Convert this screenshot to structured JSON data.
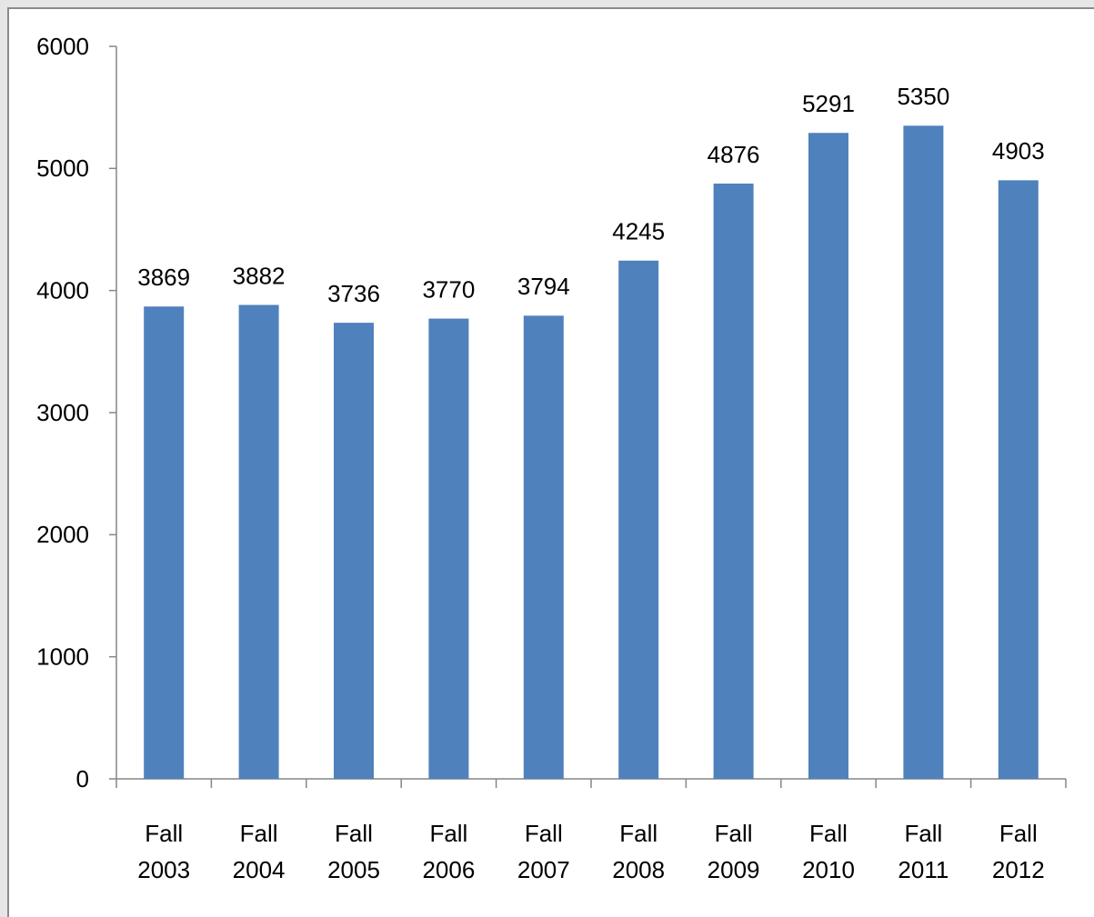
{
  "chart_data": {
    "type": "bar",
    "categories": [
      "Fall 2003",
      "Fall 2004",
      "Fall 2005",
      "Fall 2006",
      "Fall 2007",
      "Fall 2008",
      "Fall 2009",
      "Fall 2010",
      "Fall 2011",
      "Fall 2012"
    ],
    "values": [
      3869,
      3882,
      3736,
      3770,
      3794,
      4245,
      4876,
      5291,
      5350,
      4903
    ],
    "color": "#4f81bd",
    "ylim": [
      0,
      6000
    ],
    "yticks": [
      0,
      1000,
      2000,
      3000,
      4000,
      5000,
      6000
    ],
    "grid": false
  }
}
